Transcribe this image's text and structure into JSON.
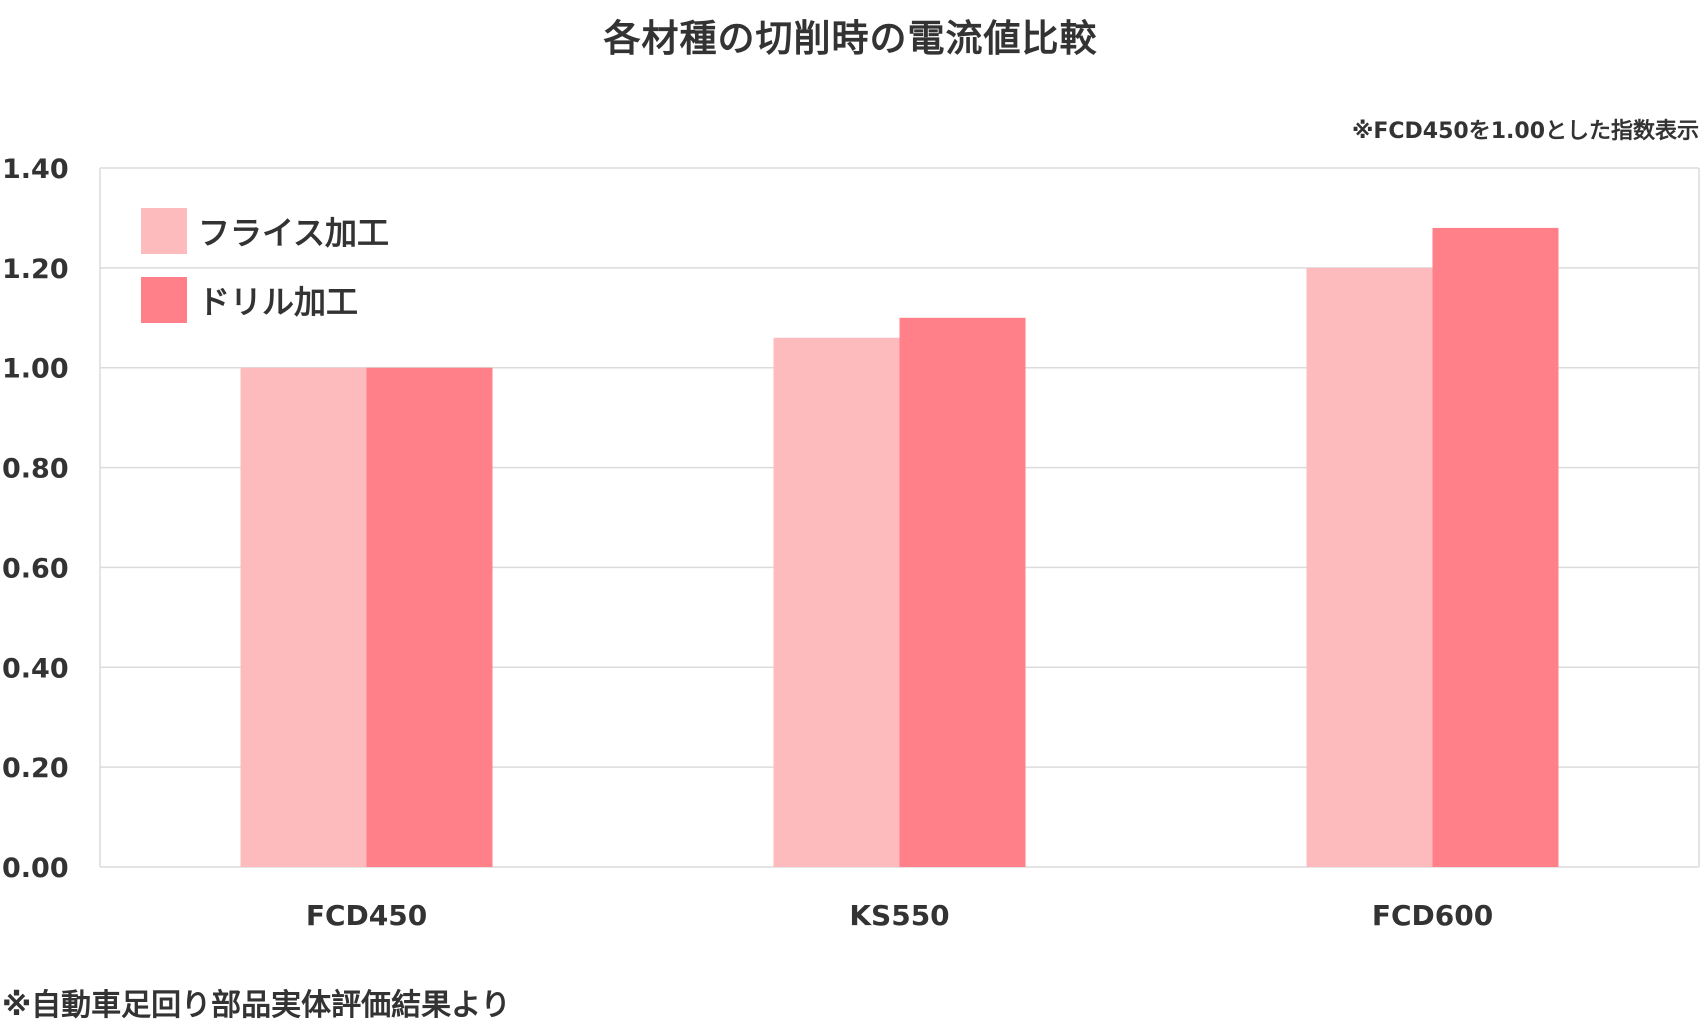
{
  "chart_data": {
    "type": "bar",
    "title": "各材種の切削時の電流値比較",
    "note": "※FCD450を1.00とした指数表示",
    "source": "※自動車足回り部品実体評価結果より",
    "categories": [
      "FCD450",
      "KS550",
      "FCD600"
    ],
    "series": [
      {
        "name": "フライス加工",
        "values": [
          1.0,
          1.06,
          1.2
        ],
        "color": "#FDBBBD"
      },
      {
        "name": "ドリル加工",
        "values": [
          1.0,
          1.1,
          1.28
        ],
        "color": "#FF8088"
      }
    ],
    "ylim": [
      0,
      1.4
    ],
    "yticks": [
      "0.00",
      "0.20",
      "0.40",
      "0.60",
      "0.80",
      "1.00",
      "1.20",
      "1.40"
    ],
    "xlabel": "",
    "ylabel": "",
    "grid": true,
    "legend": "top-left"
  }
}
